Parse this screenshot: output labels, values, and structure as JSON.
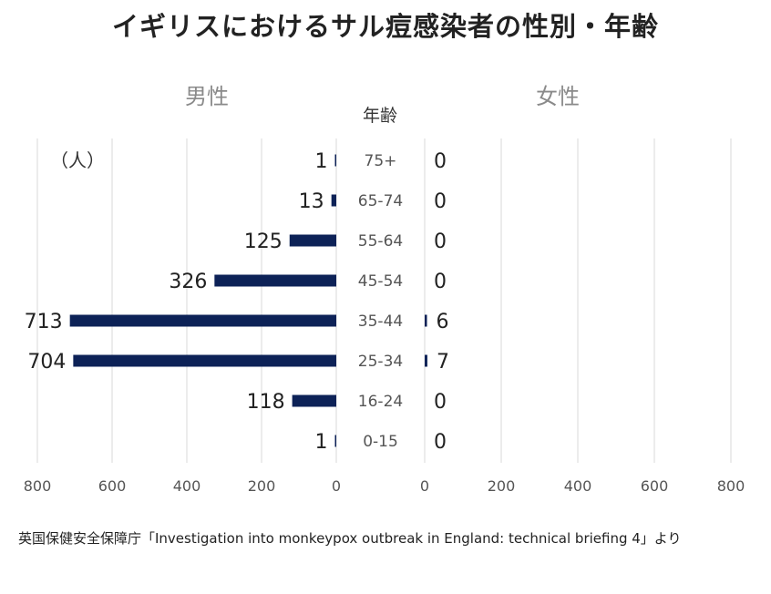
{
  "title": "イギリスにおけるサル痘感染者の性別・年齢",
  "male_label": "男性",
  "female_label": "女性",
  "age_header": "年齢",
  "unit": "（人）",
  "source": "英国保健安全保障庁「Investigation into monkeypox outbreak in England: technical briefing 4」より",
  "colors": {
    "bar": "#0d2257",
    "grid": "#d9d9d9"
  },
  "chart_data": {
    "type": "bar",
    "orientation": "horizontal-butterfly",
    "categories": [
      "75+",
      "65-74",
      "55-64",
      "45-54",
      "35-44",
      "25-34",
      "16-24",
      "0-15"
    ],
    "series": [
      {
        "name": "男性",
        "values": [
          1,
          13,
          125,
          326,
          713,
          704,
          118,
          1
        ]
      },
      {
        "name": "女性",
        "values": [
          0,
          0,
          0,
          0,
          6,
          7,
          0,
          0
        ]
      }
    ],
    "xlim": [
      0,
      800
    ],
    "xticks": [
      0,
      200,
      400,
      600,
      800
    ],
    "grid": true
  }
}
